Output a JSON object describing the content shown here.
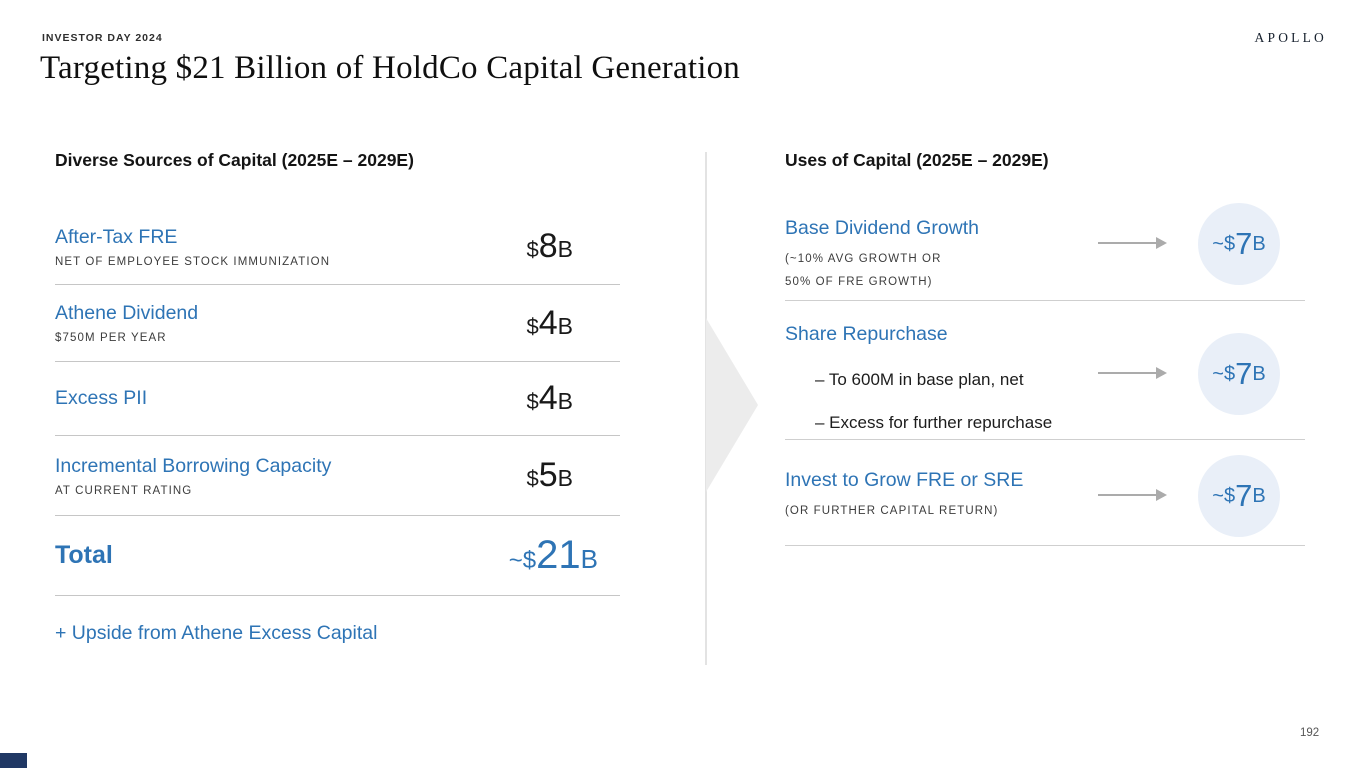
{
  "slide": {
    "eyebrow": "INVESTOR DAY 2024",
    "title": "Targeting $21 Billion of HoldCo Capital Generation",
    "logo": "APOLLO",
    "page_number": "192"
  },
  "colors": {
    "accent_blue": "#2E74B5",
    "text_dark": "#1A1A1A",
    "subtext_gray": "#3C3C3C",
    "divider_gray": "#C6C6C6",
    "arrow_gray": "#ABABAB",
    "circle_fill": "#E9EFF8",
    "chevron_gray": "#ECECEC",
    "corner_bar_navy": "#203864"
  },
  "sources_panel": {
    "heading": "Diverse Sources of Capital (2025E – 2029E)",
    "rows": [
      {
        "title": "After-Tax FRE",
        "subtitle": "NET OF EMPLOYEE STOCK IMMUNIZATION",
        "value_prefix": "$",
        "value": "8",
        "value_suffix": "B"
      },
      {
        "title": "Athene Dividend",
        "subtitle": "$750M PER YEAR",
        "value_prefix": "$",
        "value": "4",
        "value_suffix": "B"
      },
      {
        "title": "Excess PII",
        "subtitle": "",
        "value_prefix": "$",
        "value": "4",
        "value_suffix": "B"
      },
      {
        "title": "Incremental Borrowing Capacity",
        "subtitle": "AT CURRENT RATING",
        "value_prefix": "$",
        "value": "5",
        "value_suffix": "B"
      }
    ],
    "total": {
      "label": "Total",
      "value_prefix": "~$",
      "value": "21",
      "value_suffix": "B"
    },
    "footnote": "+ Upside from Athene Excess Capital"
  },
  "uses_panel": {
    "heading": "Uses of Capital (2025E – 2029E)",
    "rows": [
      {
        "title": "Base Dividend Growth",
        "subtitle_lines": [
          "(~10% AVG GROWTH OR",
          "50% OF FRE GROWTH)"
        ],
        "bullets": [],
        "badge": {
          "prefix": "~$",
          "value": "7",
          "suffix": "B"
        }
      },
      {
        "title": "Share Repurchase",
        "subtitle_lines": [],
        "bullets": [
          "– To 600M in base plan, net",
          "– Excess for further repurchase"
        ],
        "badge": {
          "prefix": "~$",
          "value": "7",
          "suffix": "B"
        }
      },
      {
        "title": "Invest to Grow FRE or SRE",
        "subtitle_lines": [
          "(OR FURTHER CAPITAL RETURN)"
        ],
        "bullets": [],
        "badge": {
          "prefix": "~$",
          "value": "7",
          "suffix": "B"
        }
      }
    ]
  }
}
